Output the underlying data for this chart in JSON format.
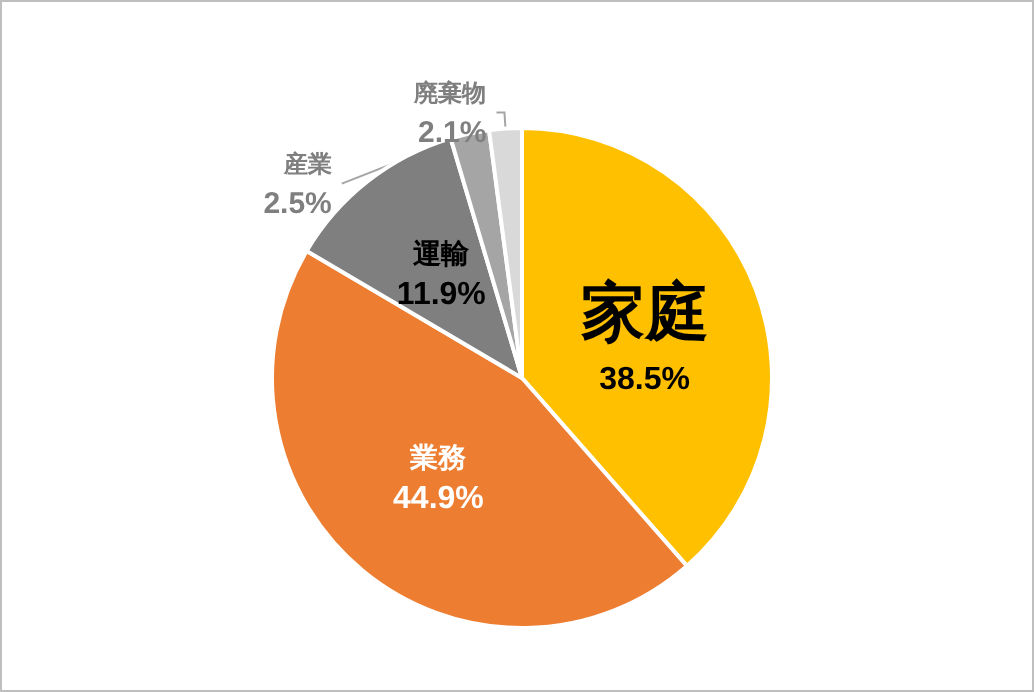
{
  "chart_data": {
    "type": "pie",
    "categories": [
      "家庭",
      "業務",
      "運輸",
      "産業",
      "廃棄物"
    ],
    "values": [
      38.5,
      44.9,
      11.9,
      2.5,
      2.1
    ],
    "colors": [
      "#ffc000",
      "#ed7d31",
      "#7f7f7f",
      "#a5a5a5",
      "#d9d9d9"
    ],
    "value_labels": [
      "38.5%",
      "44.9%",
      "11.9%",
      "2.5%",
      "2.1%"
    ],
    "legend": false
  }
}
